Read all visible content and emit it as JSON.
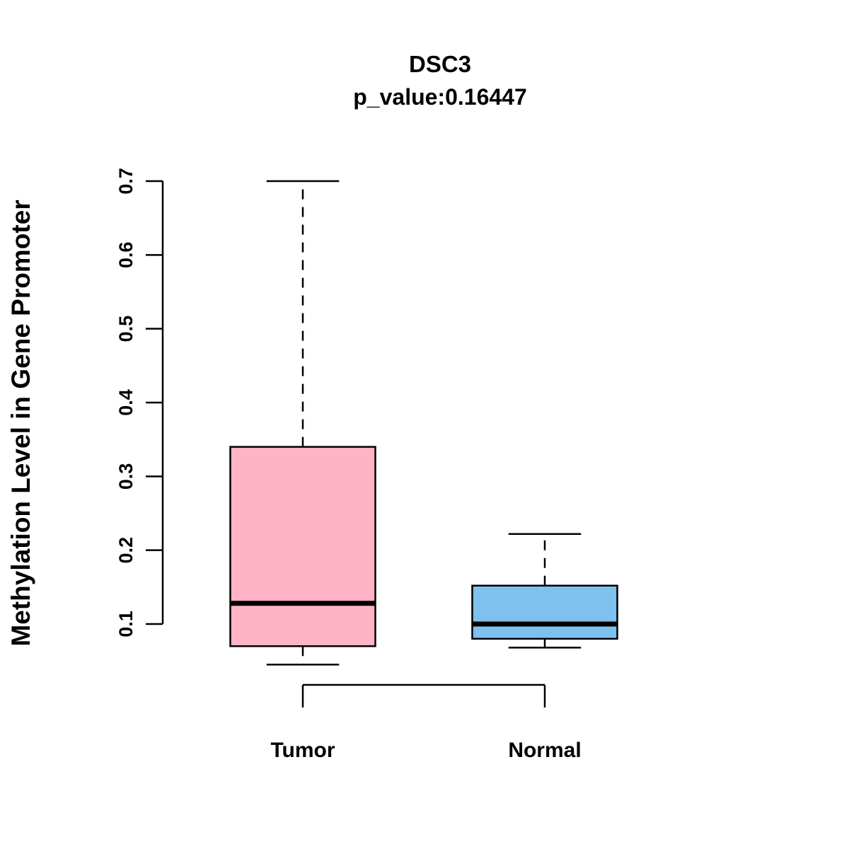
{
  "chart_data": {
    "type": "boxplot",
    "title": "DSC3",
    "subtitle": "p_value:0.16447",
    "ylabel": "Methylation Level in Gene Promoter",
    "xlabel": "",
    "ylim": [
      0.1,
      0.7
    ],
    "yticks": [
      0.1,
      0.2,
      0.3,
      0.4,
      0.5,
      0.6,
      0.7
    ],
    "grid": "off",
    "legend": "none",
    "groups": [
      {
        "label": "Tumor",
        "color": "#FFB3C6",
        "whisker_low": 0.045,
        "q1": 0.07,
        "median": 0.128,
        "q3": 0.34,
        "whisker_high": 0.7
      },
      {
        "label": "Normal",
        "color": "#7EC0EE",
        "whisker_low": 0.068,
        "q1": 0.08,
        "median": 0.1,
        "q3": 0.152,
        "whisker_high": 0.222
      }
    ]
  }
}
